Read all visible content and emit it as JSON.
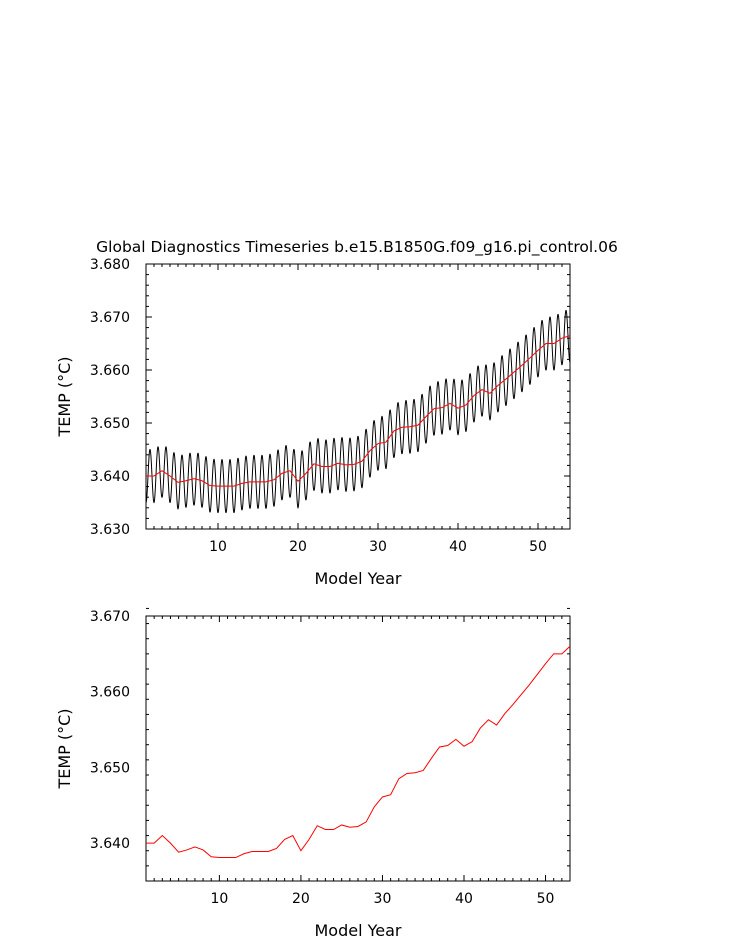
{
  "title": "Global Diagnostics Timeseries b.e15.B1850G.f09_g16.pi_control.06",
  "chart_data": [
    {
      "type": "line",
      "name": "monthly-and-annual",
      "xlabel": "Model Year",
      "ylabel": "TEMP (°C)",
      "xlim": [
        1,
        54
      ],
      "ylim": [
        3.63,
        3.68
      ],
      "xticks": [
        10,
        20,
        30,
        40,
        50
      ],
      "yticks": [
        3.63,
        3.64,
        3.65,
        3.66,
        3.67,
        3.68
      ],
      "ytick_labels": [
        "3.630",
        "3.640",
        "3.650",
        "3.660",
        "3.670",
        "3.680"
      ],
      "colors": {
        "monthly": "#000000",
        "annual": "#ff0000"
      },
      "series": [
        {
          "name": "monthly",
          "description": "Monthly values: seasonal cycle around the annual mean, amplitude in degC per year",
          "x_start": 1,
          "x_end": 54,
          "cycles_per_year": 1,
          "amplitude": [
            0.005,
            0.005,
            0.005,
            0.005,
            0.005,
            0.005,
            0.005,
            0.005,
            0.005,
            0.005,
            0.005,
            0.005,
            0.005,
            0.005,
            0.005,
            0.005,
            0.005,
            0.005,
            0.005,
            0.005,
            0.005,
            0.005,
            0.005,
            0.005,
            0.005,
            0.005,
            0.005,
            0.005,
            0.005,
            0.005,
            0.005,
            0.005,
            0.005,
            0.005,
            0.005,
            0.005,
            0.005,
            0.005,
            0.005,
            0.005,
            0.005,
            0.005,
            0.005,
            0.005,
            0.005,
            0.005,
            0.005,
            0.005,
            0.005,
            0.005,
            0.005,
            0.005,
            0.005,
            0.005
          ]
        },
        {
          "name": "annual",
          "x": [
            1,
            2,
            3,
            4,
            5,
            6,
            7,
            8,
            9,
            10,
            11,
            12,
            13,
            14,
            15,
            16,
            17,
            18,
            19,
            20,
            21,
            22,
            23,
            24,
            25,
            26,
            27,
            28,
            29,
            30,
            31,
            32,
            33,
            34,
            35,
            36,
            37,
            38,
            39,
            40,
            41,
            42,
            43,
            44,
            45,
            46,
            47,
            48,
            49,
            50,
            51,
            52,
            53,
            54
          ],
          "values": [
            3.64,
            3.64,
            3.641,
            3.64,
            3.6388,
            3.6391,
            3.6395,
            3.6391,
            3.6382,
            3.6381,
            3.6381,
            3.6381,
            3.6386,
            3.6389,
            3.6389,
            3.6389,
            3.6393,
            3.6405,
            3.641,
            3.639,
            3.6405,
            3.6423,
            3.6418,
            3.6418,
            3.6424,
            3.6421,
            3.6422,
            3.6428,
            3.6448,
            3.6461,
            3.6464,
            3.6485,
            3.6492,
            3.6493,
            3.6496,
            3.6512,
            3.6527,
            3.6529,
            3.6537,
            3.6528,
            3.6534,
            3.6552,
            3.6563,
            3.6556,
            3.6571,
            3.6583,
            3.6596,
            3.6609,
            3.6623,
            3.6637,
            3.665,
            3.665,
            3.666,
            3.6665
          ]
        }
      ]
    },
    {
      "type": "line",
      "name": "annual-only",
      "xlabel": "Model Year",
      "ylabel": "TEMP (°C)",
      "xlim": [
        1,
        53
      ],
      "ylim": [
        3.635,
        3.67
      ],
      "xticks": [
        10,
        20,
        30,
        40,
        50
      ],
      "yticks": [
        3.64,
        3.65,
        3.66,
        3.67
      ],
      "ytick_labels": [
        "3.640",
        "3.650",
        "3.660",
        "3.670"
      ],
      "colors": {
        "annual": "#ff0000"
      },
      "series": [
        {
          "name": "annual",
          "x": [
            1,
            2,
            3,
            4,
            5,
            6,
            7,
            8,
            9,
            10,
            11,
            12,
            13,
            14,
            15,
            16,
            17,
            18,
            19,
            20,
            21,
            22,
            23,
            24,
            25,
            26,
            27,
            28,
            29,
            30,
            31,
            32,
            33,
            34,
            35,
            36,
            37,
            38,
            39,
            40,
            41,
            42,
            43,
            44,
            45,
            46,
            47,
            48,
            49,
            50,
            51,
            52,
            53
          ],
          "values": [
            3.64,
            3.64,
            3.641,
            3.64,
            3.6388,
            3.6391,
            3.6395,
            3.6391,
            3.6382,
            3.6381,
            3.6381,
            3.6381,
            3.6386,
            3.6389,
            3.6389,
            3.6389,
            3.6393,
            3.6405,
            3.641,
            3.639,
            3.6405,
            3.6423,
            3.6418,
            3.6418,
            3.6424,
            3.6421,
            3.6422,
            3.6428,
            3.6448,
            3.6461,
            3.6464,
            3.6485,
            3.6492,
            3.6493,
            3.6496,
            3.6512,
            3.6527,
            3.6529,
            3.6537,
            3.6528,
            3.6534,
            3.6552,
            3.6563,
            3.6556,
            3.6571,
            3.6583,
            3.6596,
            3.6609,
            3.6623,
            3.6637,
            3.665,
            3.665,
            3.666
          ]
        }
      ]
    }
  ]
}
